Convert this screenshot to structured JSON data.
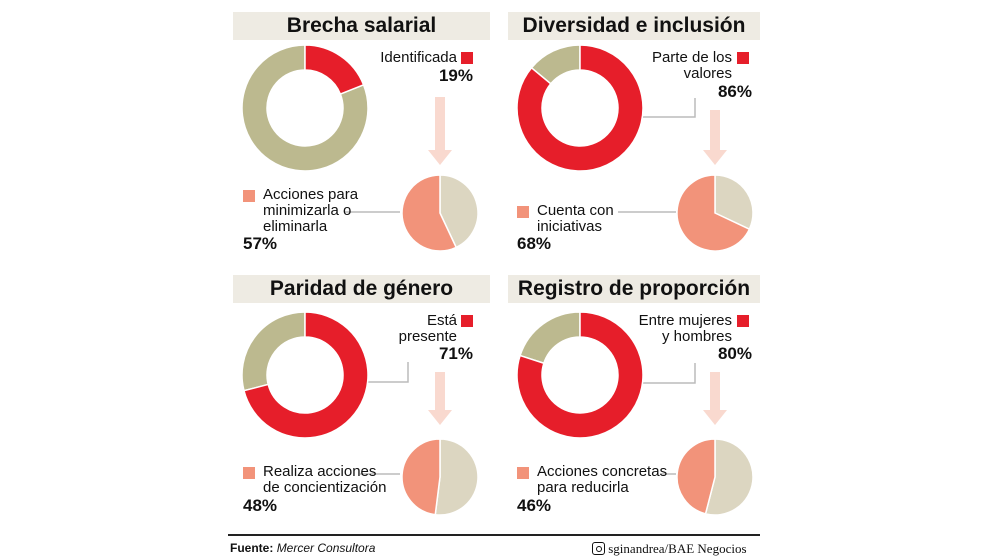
{
  "chart_data": [
    {
      "type": "pie",
      "title": "Brecha salarial",
      "donut": {
        "label": "Identificada",
        "value": 19,
        "pct_text": "19%"
      },
      "pie": {
        "label_lines": [
          "Acciones para",
          "minimizarla o",
          "eliminarla"
        ],
        "value": 57,
        "pct_text": "57%"
      }
    },
    {
      "type": "pie",
      "title": "Diversidad e inclusión",
      "donut": {
        "label_lines": [
          "Parte de los",
          "valores"
        ],
        "value": 86,
        "pct_text": "86%"
      },
      "pie": {
        "label_lines": [
          "Cuenta con",
          "iniciativas"
        ],
        "value": 68,
        "pct_text": "68%"
      }
    },
    {
      "type": "pie",
      "title": "Paridad de género",
      "donut": {
        "label_lines": [
          "Está",
          "presente"
        ],
        "value": 71,
        "pct_text": "71%"
      },
      "pie": {
        "label_lines": [
          "Realiza acciones",
          "de concientización"
        ],
        "value": 48,
        "pct_text": "48%"
      }
    },
    {
      "type": "pie",
      "title": "Registro de proporción",
      "donut": {
        "label_lines": [
          "Entre mujeres",
          "y hombres"
        ],
        "value": 80,
        "pct_text": "80%"
      },
      "pie": {
        "label_lines": [
          "Acciones concretas",
          "para reducirla"
        ],
        "value": 46,
        "pct_text": "46%"
      }
    }
  ],
  "colors": {
    "red": "#e61e2a",
    "olive": "#bcb98f",
    "salmon": "#f2937a",
    "beige": "#dcd6c1",
    "arrow": "#f9d9cf",
    "header": "#eeebe3"
  },
  "footer": {
    "source_label": "Fuente:",
    "source": "Mercer Consultora",
    "credit": "sginandrea/BAE Negocios",
    "credit_icon": "instagram-icon"
  }
}
